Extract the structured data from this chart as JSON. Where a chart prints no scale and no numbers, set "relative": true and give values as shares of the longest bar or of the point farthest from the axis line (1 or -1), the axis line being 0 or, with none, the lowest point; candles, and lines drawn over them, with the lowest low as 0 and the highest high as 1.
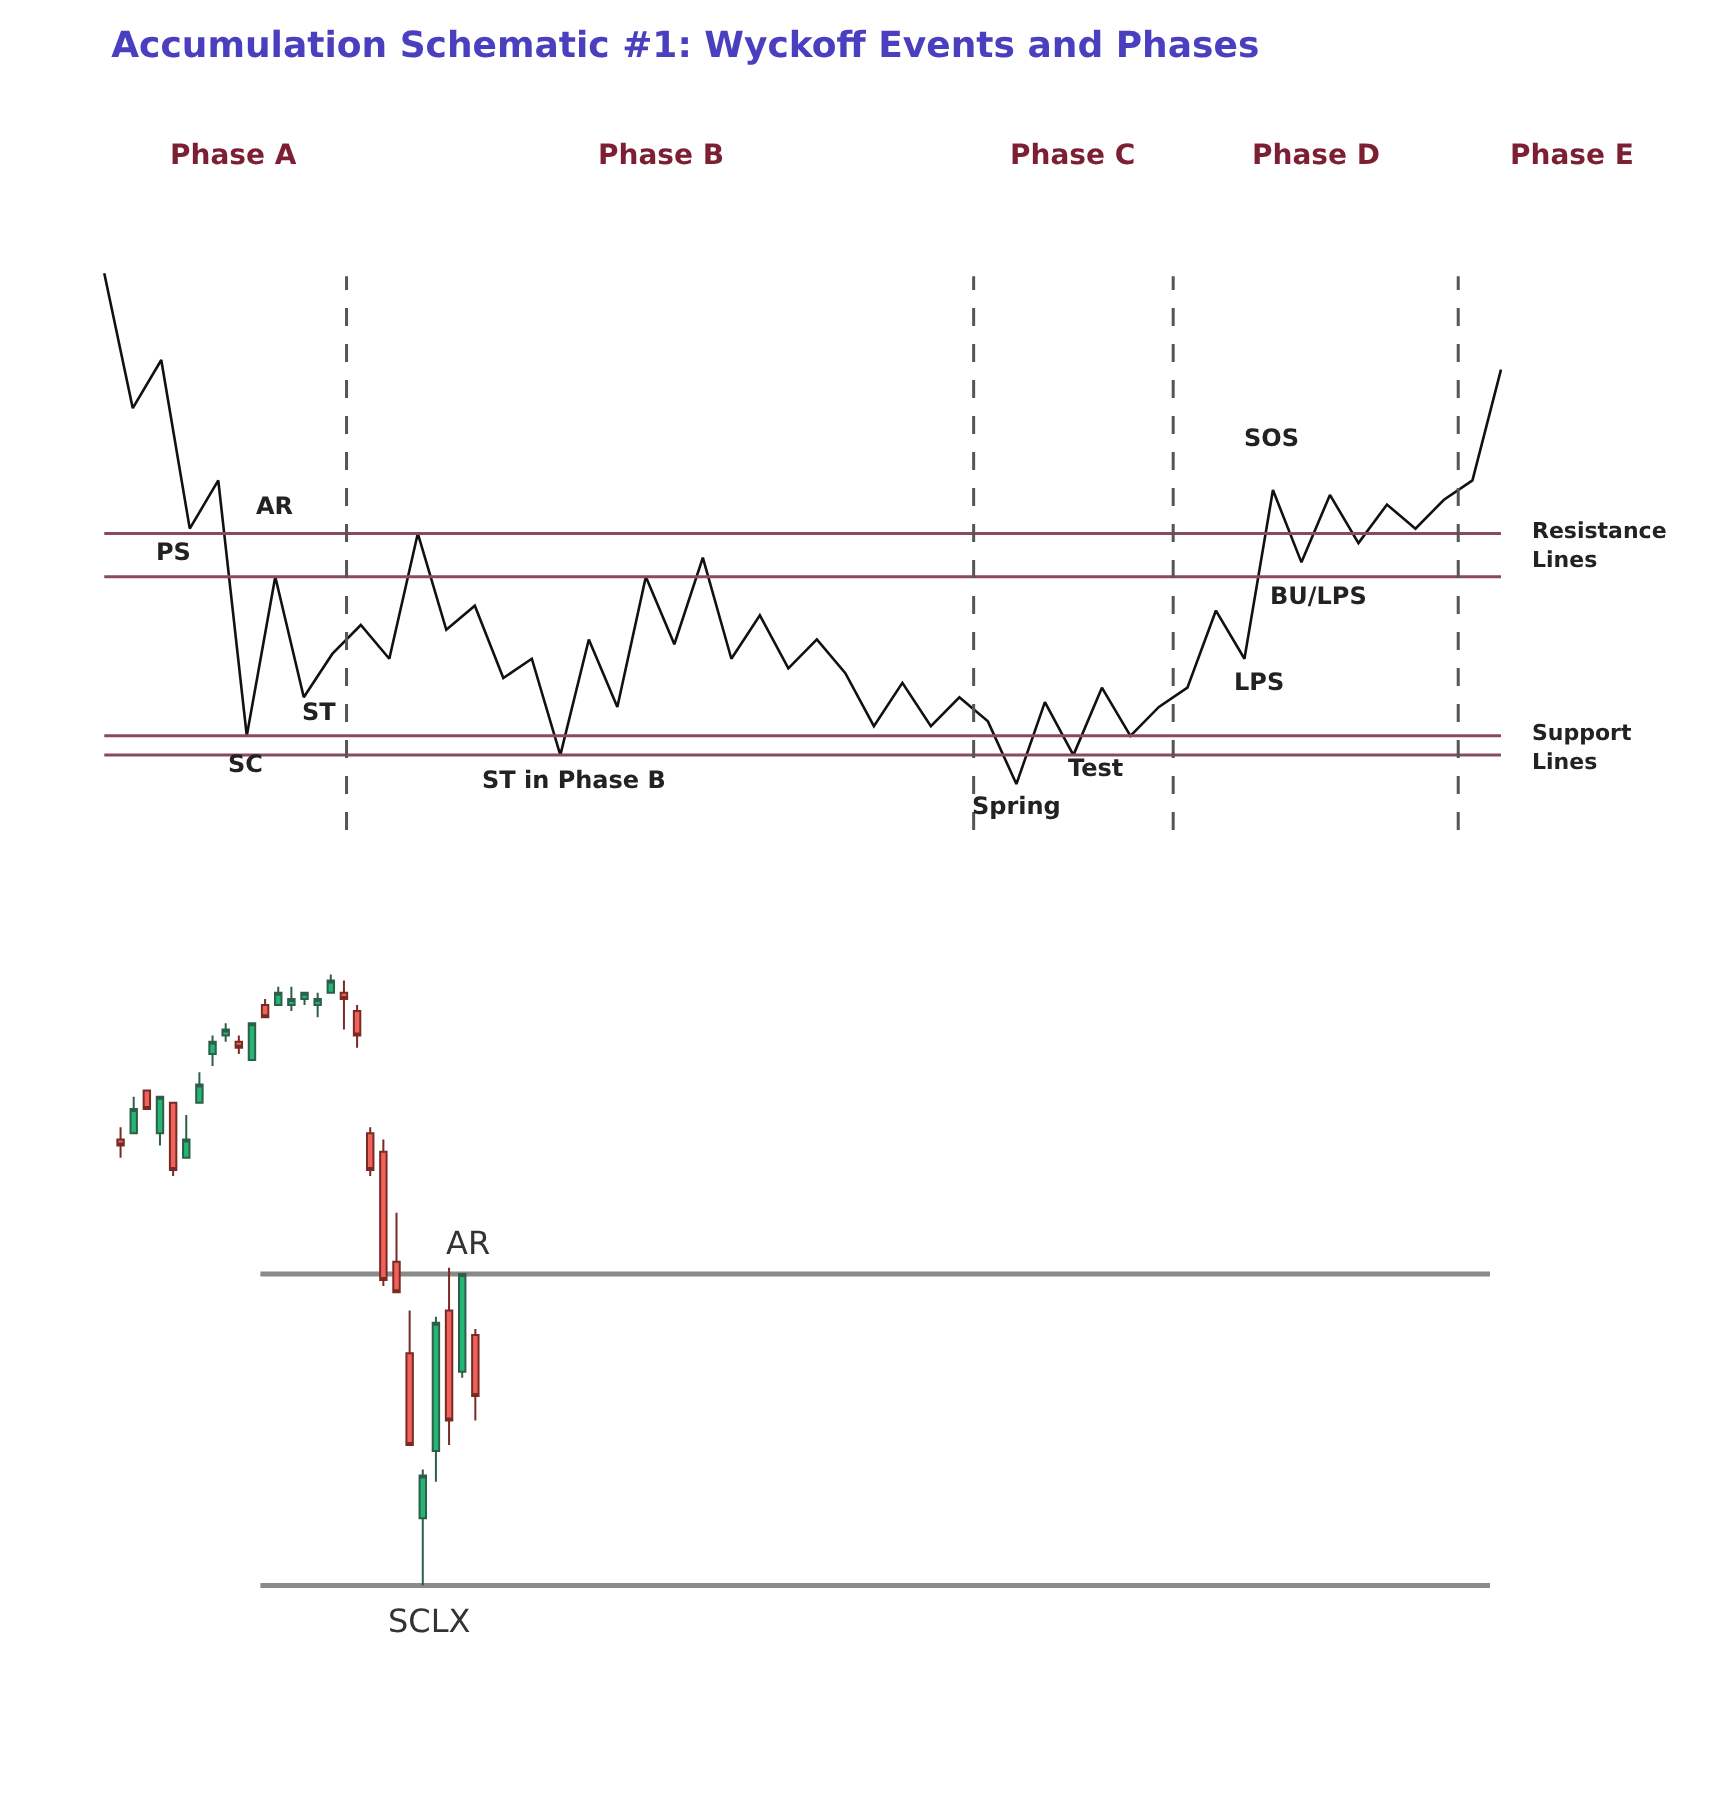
{
  "chart_data": [
    {
      "type": "line",
      "title": "Accumulation Schematic #1: Wyckoff Events and Phases",
      "relative": true,
      "tick_labels": false,
      "color": "#111111",
      "line_style": "solid",
      "categories": [
        null,
        null,
        null,
        null,
        null,
        null,
        null,
        null,
        null,
        null,
        null,
        null,
        null,
        null,
        null,
        null,
        null,
        null,
        null,
        null,
        null,
        null,
        null,
        null,
        null,
        null,
        null,
        null,
        null,
        null,
        null,
        null,
        null,
        null,
        null,
        null,
        null,
        null,
        null,
        null,
        null,
        null,
        null,
        null,
        null,
        null,
        null,
        null,
        null,
        null
      ],
      "values": [
        1.0,
        0.72,
        0.82,
        0.47,
        0.57,
        0.04,
        0.37,
        0.12,
        0.21,
        0.27,
        0.2,
        0.46,
        0.26,
        0.31,
        0.16,
        0.2,
        0.0,
        0.24,
        0.1,
        0.37,
        0.23,
        0.41,
        0.2,
        0.29,
        0.18,
        0.24,
        0.17,
        0.06,
        0.15,
        0.06,
        0.12,
        0.07,
        -0.06,
        0.11,
        0.0,
        0.14,
        0.04,
        0.1,
        0.14,
        0.3,
        0.2,
        0.55,
        0.4,
        0.54,
        0.44,
        0.52,
        0.47,
        0.53,
        0.57,
        0.8
      ],
      "ref_lines": [
        {
          "axis": "y",
          "value": 0.46,
          "color": "#8b4a5c",
          "label": "Resistance Lines"
        },
        {
          "axis": "y",
          "value": 0.37,
          "color": "#8b4a5c"
        },
        {
          "axis": "y",
          "value": 0.04,
          "color": "#8b4a5c",
          "label": "Support Lines"
        },
        {
          "axis": "y",
          "value": 0,
          "color": "#8b4a5c"
        }
      ],
      "annotations": [
        "Phase A",
        "Phase B",
        "Phase C",
        "Phase D",
        "Phase E",
        "PS",
        "AR",
        "ST",
        "SC",
        "ST in Phase B",
        "Spring",
        "Test",
        "LPS",
        "BU/LPS",
        "SOS"
      ]
    },
    {
      "type": "candlestick",
      "relative": true,
      "tick_labels": false,
      "categories": [
        null,
        null,
        null,
        null,
        null,
        null,
        null,
        null,
        null,
        null,
        null,
        null,
        null,
        null,
        null,
        null,
        null,
        null,
        null,
        null,
        null,
        null,
        null,
        null,
        null,
        null,
        null,
        null
      ],
      "ohlc": [
        [
          0.73,
          0.75,
          0.7,
          0.72
        ],
        [
          0.74,
          0.8,
          0.74,
          0.78
        ],
        [
          0.81,
          0.81,
          0.78,
          0.78
        ],
        [
          0.74,
          0.8,
          0.72,
          0.8
        ],
        [
          0.79,
          0.79,
          0.67,
          0.68
        ],
        [
          0.7,
          0.77,
          0.7,
          0.73
        ],
        [
          0.79,
          0.84,
          0.79,
          0.82
        ],
        [
          0.87,
          0.9,
          0.85,
          0.89
        ],
        [
          0.9,
          0.92,
          0.89,
          0.91
        ],
        [
          0.89,
          0.9,
          0.87,
          0.88
        ],
        [
          0.86,
          0.92,
          0.86,
          0.92
        ],
        [
          0.95,
          0.96,
          0.93,
          0.93
        ],
        [
          0.95,
          0.98,
          0.95,
          0.97
        ],
        [
          0.95,
          0.98,
          0.94,
          0.96
        ],
        [
          0.96,
          0.97,
          0.95,
          0.97
        ],
        [
          0.95,
          0.97,
          0.93,
          0.96
        ],
        [
          0.97,
          1.0,
          0.97,
          0.99
        ],
        [
          0.97,
          0.99,
          0.91,
          0.96
        ],
        [
          0.94,
          0.95,
          0.88,
          0.9
        ],
        [
          0.74,
          0.75,
          0.67,
          0.68
        ],
        [
          0.71,
          0.73,
          0.49,
          0.5
        ],
        [
          0.53,
          0.61,
          0.48,
          0.48
        ],
        [
          0.38,
          0.45,
          0.23,
          0.23
        ],
        [
          0.11,
          0.19,
          0.0,
          0.18
        ],
        [
          0.22,
          0.44,
          0.17,
          0.43
        ],
        [
          0.45,
          0.52,
          0.23,
          0.27
        ],
        [
          0.35,
          0.51,
          0.34,
          0.51
        ],
        [
          0.41,
          0.42,
          0.27,
          0.31
        ]
      ],
      "colors": [
        "#f0625a",
        "#22b573",
        "#f0625a",
        "#22b573",
        "#f0625a",
        "#22b573",
        "#22b573",
        "#22b573",
        "#22b573",
        "#f0625a",
        "#22b573",
        "#f0625a",
        "#22b573",
        "#22b573",
        "#22b573",
        "#22b573",
        "#22b573",
        "#f0625a",
        "#f0625a",
        "#f0625a",
        "#f0625a",
        "#f0625a",
        "#f0625a",
        "#22b573",
        "#22b573",
        "#f0625a",
        "#22b573",
        "#f0625a"
      ],
      "ref_lines": [
        {
          "axis": "y",
          "value": 0.51,
          "label": "AR",
          "color": "#8a8a8a"
        },
        {
          "axis": "y",
          "value": 0,
          "label": "SCLX",
          "color": "#8a8a8a"
        }
      ]
    }
  ]
}
